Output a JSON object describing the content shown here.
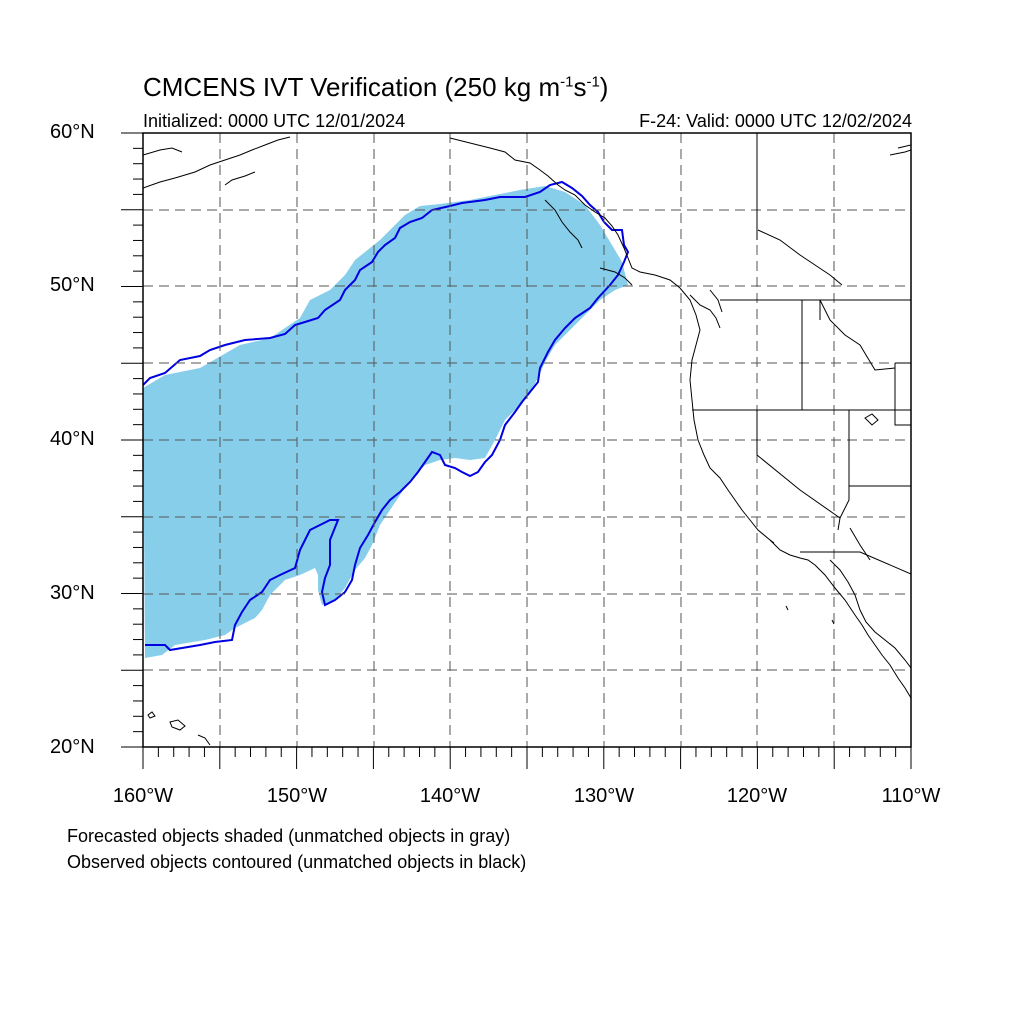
{
  "title": {
    "prefix": "CMCENS IVT Verification (250 kg m",
    "sup1": "-1",
    "mid": "s",
    "sup2": "-1",
    "suffix": ")"
  },
  "subtitle_left": "Initialized: 0000 UTC 12/01/2024",
  "subtitle_right": "F-24: Valid: 0000 UTC 12/02/2024",
  "axes": {
    "lat_labels": [
      "60°N",
      "50°N",
      "40°N",
      "30°N",
      "20°N"
    ],
    "lon_labels": [
      "160°W",
      "150°W",
      "140°W",
      "130°W",
      "120°W",
      "110°W"
    ],
    "lat_range": [
      20,
      60
    ],
    "lon_range": [
      -160,
      -110
    ]
  },
  "notes": [
    "Forecasted objects shaded (unmatched objects in gray)",
    "Observed objects contoured (unmatched objects in black)"
  ],
  "colors": {
    "forecast_fill": "#87ceeb",
    "observed_contour": "#0000e0",
    "coastline": "#000000",
    "grid": "#555555"
  }
}
